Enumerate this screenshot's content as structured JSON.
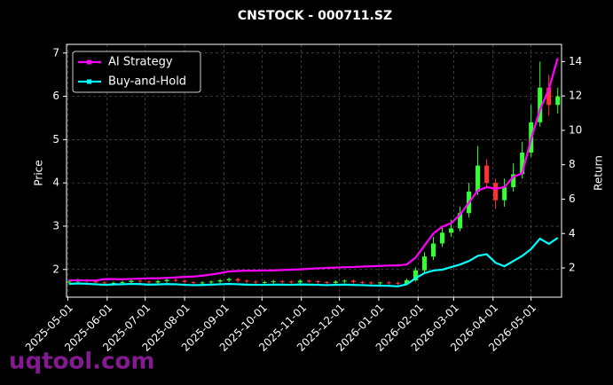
{
  "chart_data": {
    "type": "candlestick",
    "title": "CNSTOCK - 000711.SZ",
    "y_label": "Price",
    "y2_label": "Return",
    "watermark": "uqtool.com",
    "x": [
      "2025-05-02",
      "2025-05-09",
      "2025-05-16",
      "2025-05-23",
      "2025-05-30",
      "2025-06-06",
      "2025-06-13",
      "2025-06-20",
      "2025-06-27",
      "2025-07-04",
      "2025-07-11",
      "2025-07-18",
      "2025-07-25",
      "2025-08-01",
      "2025-08-08",
      "2025-08-15",
      "2025-08-22",
      "2025-08-29",
      "2025-09-05",
      "2025-09-12",
      "2025-09-19",
      "2025-09-26",
      "2025-10-03",
      "2025-10-10",
      "2025-10-17",
      "2025-10-24",
      "2025-10-31",
      "2025-11-07",
      "2025-11-14",
      "2025-11-21",
      "2025-11-28",
      "2025-12-05",
      "2025-12-12",
      "2025-12-19",
      "2025-12-26",
      "2026-01-02",
      "2026-01-09",
      "2026-01-16",
      "2026-01-23",
      "2026-01-30",
      "2026-02-06",
      "2026-02-13",
      "2026-02-20",
      "2026-02-27",
      "2026-03-06",
      "2026-03-13",
      "2026-03-20",
      "2026-03-27",
      "2026-04-03",
      "2026-04-10",
      "2026-04-17",
      "2026-04-24",
      "2026-05-01",
      "2026-05-08",
      "2026-05-15",
      "2026-05-22"
    ],
    "open": [
      1.7,
      1.72,
      1.75,
      1.73,
      1.7,
      1.68,
      1.69,
      1.71,
      1.74,
      1.72,
      1.7,
      1.73,
      1.76,
      1.74,
      1.71,
      1.69,
      1.7,
      1.72,
      1.75,
      1.78,
      1.74,
      1.72,
      1.7,
      1.71,
      1.73,
      1.72,
      1.7,
      1.74,
      1.73,
      1.71,
      1.69,
      1.72,
      1.74,
      1.71,
      1.7,
      1.68,
      1.7,
      1.69,
      1.67,
      1.75,
      1.98,
      2.3,
      2.6,
      2.85,
      2.95,
      3.3,
      3.8,
      4.4,
      4.0,
      3.6,
      3.9,
      4.2,
      4.7,
      5.4,
      6.2,
      5.8
    ],
    "high": [
      1.76,
      1.79,
      1.78,
      1.76,
      1.73,
      1.72,
      1.74,
      1.77,
      1.77,
      1.75,
      1.76,
      1.79,
      1.79,
      1.76,
      1.73,
      1.73,
      1.75,
      1.78,
      1.81,
      1.81,
      1.77,
      1.75,
      1.74,
      1.76,
      1.76,
      1.75,
      1.77,
      1.77,
      1.75,
      1.73,
      1.75,
      1.77,
      1.77,
      1.74,
      1.73,
      1.72,
      1.73,
      1.72,
      1.79,
      2.05,
      2.4,
      2.75,
      3.0,
      3.15,
      3.45,
      4.0,
      4.85,
      4.55,
      4.1,
      4.1,
      4.45,
      4.95,
      5.8,
      6.8,
      6.5,
      6.2
    ],
    "low": [
      1.66,
      1.68,
      1.69,
      1.66,
      1.64,
      1.64,
      1.65,
      1.67,
      1.68,
      1.66,
      1.66,
      1.69,
      1.7,
      1.67,
      1.65,
      1.65,
      1.66,
      1.68,
      1.71,
      1.7,
      1.68,
      1.66,
      1.66,
      1.67,
      1.68,
      1.66,
      1.66,
      1.69,
      1.67,
      1.65,
      1.65,
      1.68,
      1.67,
      1.66,
      1.64,
      1.64,
      1.65,
      1.63,
      1.64,
      1.72,
      1.92,
      2.22,
      2.52,
      2.75,
      2.88,
      3.2,
      3.72,
      3.9,
      3.4,
      3.45,
      3.8,
      4.1,
      4.6,
      5.3,
      5.55,
      5.6
    ],
    "close": [
      1.72,
      1.75,
      1.73,
      1.7,
      1.68,
      1.69,
      1.71,
      1.74,
      1.72,
      1.7,
      1.73,
      1.76,
      1.74,
      1.71,
      1.69,
      1.7,
      1.72,
      1.75,
      1.78,
      1.74,
      1.72,
      1.7,
      1.71,
      1.73,
      1.72,
      1.7,
      1.74,
      1.73,
      1.71,
      1.69,
      1.72,
      1.74,
      1.71,
      1.7,
      1.68,
      1.7,
      1.69,
      1.67,
      1.75,
      1.98,
      2.3,
      2.6,
      2.85,
      2.95,
      3.3,
      3.8,
      4.4,
      4.0,
      3.6,
      3.9,
      4.2,
      4.7,
      5.4,
      6.2,
      5.8,
      6.0
    ],
    "up_color": "#33ff33",
    "down_color": "#ff3333",
    "series": [
      {
        "name": "AI Strategy",
        "color": "#ff00ff",
        "axis": "y2",
        "values": [
          1.28,
          1.28,
          1.27,
          1.27,
          1.35,
          1.35,
          1.34,
          1.36,
          1.38,
          1.4,
          1.4,
          1.42,
          1.45,
          1.48,
          1.5,
          1.55,
          1.62,
          1.7,
          1.8,
          1.82,
          1.84,
          1.84,
          1.85,
          1.86,
          1.88,
          1.9,
          1.92,
          1.95,
          1.98,
          2.0,
          2.02,
          2.04,
          2.05,
          2.08,
          2.1,
          2.12,
          2.14,
          2.15,
          2.2,
          2.6,
          3.3,
          4.0,
          4.4,
          4.6,
          5.1,
          5.8,
          6.5,
          6.7,
          6.6,
          6.7,
          7.3,
          7.5,
          9.5,
          11.2,
          12.4,
          14.2
        ]
      },
      {
        "name": "Buy-and-Hold",
        "color": "#00ffff",
        "axis": "y2",
        "values": [
          1.07,
          1.1,
          1.08,
          1.05,
          1.02,
          1.04,
          1.05,
          1.07,
          1.06,
          1.03,
          1.04,
          1.06,
          1.05,
          1.02,
          1.0,
          1.01,
          1.03,
          1.05,
          1.07,
          1.05,
          1.03,
          1.02,
          1.02,
          1.03,
          1.03,
          1.02,
          1.04,
          1.03,
          1.02,
          1.0,
          1.02,
          1.03,
          1.01,
          1.0,
          0.98,
          0.97,
          0.96,
          0.93,
          1.05,
          1.4,
          1.7,
          1.85,
          1.9,
          2.05,
          2.2,
          2.4,
          2.7,
          2.8,
          2.3,
          2.1,
          2.4,
          2.7,
          3.1,
          3.7,
          3.4,
          3.75
        ]
      }
    ],
    "xlim": [
      "2025-04-30",
      "2026-05-25"
    ],
    "xticks": [
      "2025-05-01",
      "2025-06-01",
      "2025-07-01",
      "2025-08-01",
      "2025-09-01",
      "2025-10-01",
      "2025-11-01",
      "2025-12-01",
      "2026-01-01",
      "2026-02-01",
      "2026-03-01",
      "2026-04-01",
      "2026-05-01"
    ],
    "ylim": [
      1.36,
      7.2
    ],
    "yticks": [
      2,
      3,
      4,
      5,
      6,
      7
    ],
    "y2lim": [
      0.3,
      15
    ],
    "y2ticks": [
      2,
      4,
      6,
      8,
      10,
      12,
      14
    ],
    "grid": true,
    "legend": "upper left"
  }
}
